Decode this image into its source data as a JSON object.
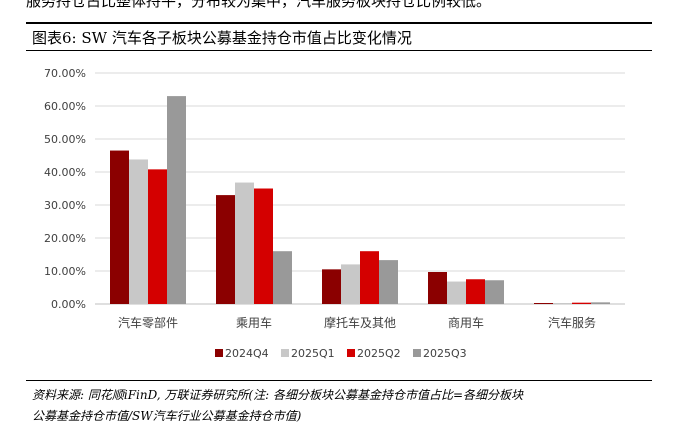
{
  "header": {
    "top_cut_text": "服务持仓占比整体持平，分布较为集中，汽车服务板块持仓比例较低。",
    "figure_title": "图表6: SW 汽车各子板块公募基金持仓市值占比变化情况"
  },
  "footer": {
    "source_line1": "资料来源: 同花顺iFinD, 万联证券研究所(注: 各细分板块公募基金持仓市值占比=各细分板块",
    "source_line2": "公募基金持仓市值/SW汽车行业公募基金持仓市值)"
  },
  "chart_data": {
    "type": "bar",
    "categories": [
      "汽车零部件",
      "乘用车",
      "摩托车及其他",
      "商用车",
      "汽车服务"
    ],
    "series": [
      {
        "name": "2024Q4",
        "color": "#8b0000",
        "values": [
          46.5,
          33.0,
          10.5,
          9.7,
          0.3
        ]
      },
      {
        "name": "2025Q1",
        "color": "#c8c8c8",
        "values": [
          43.8,
          36.8,
          12.0,
          6.8,
          0.3
        ]
      },
      {
        "name": "2025Q2",
        "color": "#d40000",
        "values": [
          40.8,
          35.0,
          16.0,
          7.5,
          0.4
        ]
      },
      {
        "name": "2025Q3",
        "color": "#999999",
        "values": [
          63.0,
          16.0,
          13.3,
          7.2,
          0.5
        ]
      }
    ],
    "yticks": [
      "0.00%",
      "10.00%",
      "20.00%",
      "30.00%",
      "40.00%",
      "50.00%",
      "60.00%",
      "70.00%"
    ],
    "ylim": [
      0,
      70
    ],
    "grid": true,
    "legend_position": "bottom"
  }
}
